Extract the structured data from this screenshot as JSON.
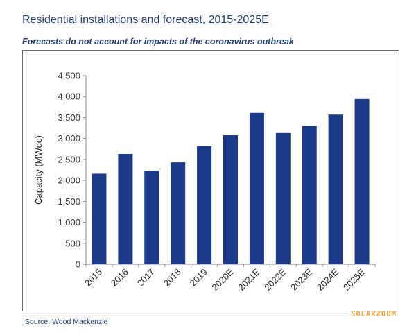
{
  "header": {
    "title": "Residential installations and forecast, 2015-2025E",
    "subtitle": "Forecasts do not account for impacts of the coronavirus outbreak"
  },
  "footer": {
    "source": "Source: Wood Mackenzie",
    "watermark": "SOLARZOOM"
  },
  "colors": {
    "bar": "#1b3a8a",
    "title": "#1f3d7a",
    "axis": "#888888",
    "watermark": "#f0a030"
  },
  "chart_data": {
    "type": "bar",
    "title": "Residential installations and forecast, 2015-2025E",
    "subtitle": "Forecasts do not account for impacts of the coronavirus outbreak",
    "xlabel": "",
    "ylabel": "Capacity (MWdc)",
    "categories": [
      "2015",
      "2016",
      "2017",
      "2018",
      "2019",
      "2020E",
      "2021E",
      "2022E",
      "2023E",
      "2024E",
      "2025E"
    ],
    "values": [
      2160,
      2630,
      2230,
      2430,
      2820,
      3080,
      3610,
      3130,
      3300,
      3570,
      3940
    ],
    "ylim": [
      0,
      4500
    ],
    "yticks": [
      0,
      500,
      1000,
      1500,
      2000,
      2500,
      3000,
      3500,
      4000,
      4500
    ],
    "ytick_labels": [
      "0",
      "500",
      "1,000",
      "1,500",
      "2,000",
      "2,500",
      "3,000",
      "3,500",
      "4,000",
      "4,500"
    ],
    "grid": false,
    "legend": "none"
  }
}
